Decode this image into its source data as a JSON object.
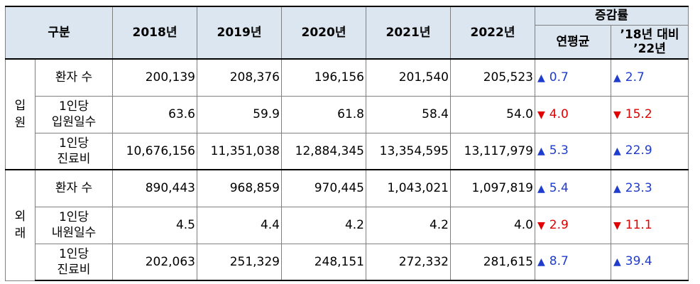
{
  "header": {
    "category": "구분",
    "years": [
      "2018년",
      "2019년",
      "2020년",
      "2021년",
      "2022년"
    ],
    "rate_group": "증감률",
    "rate_cols": [
      "연평균",
      "’18년 대비\n’22년"
    ]
  },
  "groups": [
    {
      "label": "입\n원",
      "rows": [
        {
          "label": "환자 수",
          "values": [
            "200,139",
            "208,376",
            "196,156",
            "201,540",
            "205,523"
          ],
          "avg": {
            "dir": "up",
            "value": "0.7"
          },
          "vs": {
            "dir": "up",
            "value": "2.7"
          }
        },
        {
          "label": "1인당\n입원일수",
          "values": [
            "63.6",
            "59.9",
            "61.8",
            "58.4",
            "54.0"
          ],
          "avg": {
            "dir": "down",
            "value": "4.0"
          },
          "vs": {
            "dir": "down",
            "value": "15.2"
          }
        },
        {
          "label": "1인당\n진료비",
          "values": [
            "10,676,156",
            "11,351,038",
            "12,884,345",
            "13,354,595",
            "13,117,979"
          ],
          "avg": {
            "dir": "up",
            "value": "5.3"
          },
          "vs": {
            "dir": "up",
            "value": "22.9"
          }
        }
      ]
    },
    {
      "label": "외\n래",
      "rows": [
        {
          "label": "환자 수",
          "values": [
            "890,443",
            "968,859",
            "970,445",
            "1,043,021",
            "1,097,819"
          ],
          "avg": {
            "dir": "up",
            "value": "5.4"
          },
          "vs": {
            "dir": "up",
            "value": "23.3"
          }
        },
        {
          "label": "1인당\n내원일수",
          "values": [
            "4.5",
            "4.4",
            "4.2",
            "4.2",
            "4.0"
          ],
          "avg": {
            "dir": "down",
            "value": "2.9"
          },
          "vs": {
            "dir": "down",
            "value": "11.1"
          }
        },
        {
          "label": "1인당\n진료비",
          "values": [
            "202,063",
            "251,329",
            "248,151",
            "272,332",
            "281,615"
          ],
          "avg": {
            "dir": "up",
            "value": "8.7"
          },
          "vs": {
            "dir": "up",
            "value": "39.4"
          }
        }
      ]
    }
  ],
  "symbols": {
    "up": "▲",
    "down": "▼"
  }
}
